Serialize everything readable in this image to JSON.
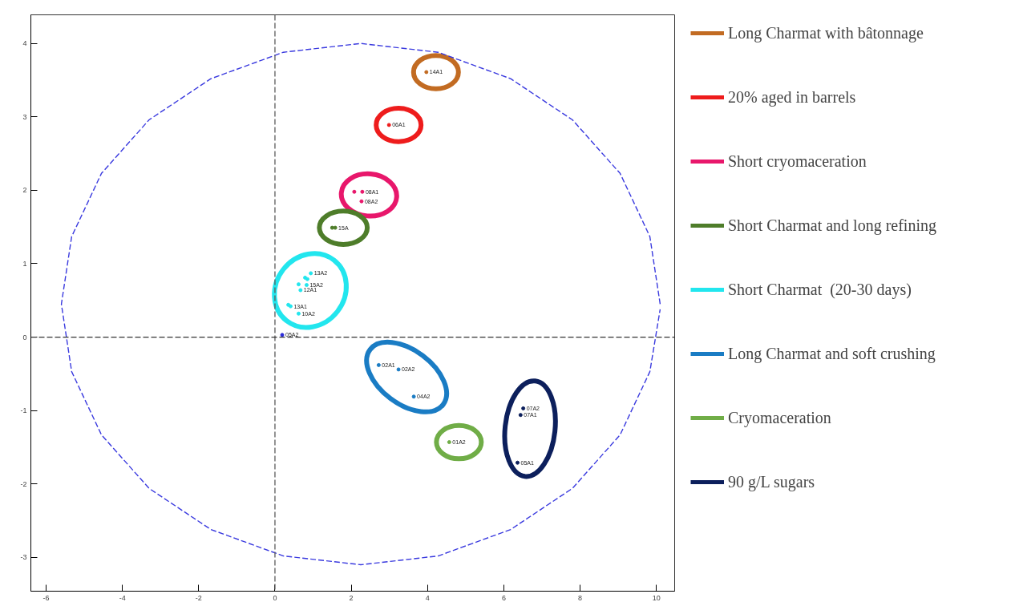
{
  "chart_data": {
    "type": "scatter",
    "xlim": [
      -6.4,
      10.48
    ],
    "ylim": [
      -3.46,
      4.39
    ],
    "xticks": [
      -6,
      -4,
      -2,
      0,
      2,
      4,
      6,
      8,
      10
    ],
    "yticks": [
      -3,
      -2,
      -1,
      0,
      1,
      2,
      3,
      4
    ],
    "grid": false,
    "legend": "right",
    "marker": "circle",
    "series": [
      {
        "name": "Long Charmat with bâtonnage",
        "color": "#c26b22",
        "x": [
          3.97
        ],
        "values": [
          3.61
        ]
      },
      {
        "name": "20% aged in barrels",
        "color": "#ee1c1c",
        "x": [
          2.99
        ],
        "values": [
          2.89
        ]
      },
      {
        "name": "Short cryomaceration",
        "color": "#e8176b",
        "x": [
          2.08,
          2.29,
          2.27
        ],
        "values": [
          1.98,
          1.98,
          1.85
        ]
      },
      {
        "name": "Short Charmat and long refining",
        "color": "#4e7d2a",
        "x": [
          1.5,
          1.58
        ],
        "values": [
          1.49,
          1.49
        ]
      },
      {
        "name": "Short Charmat  (20-30 days)",
        "color": "#22e6ee",
        "x": [
          0.94,
          0.79,
          0.85,
          0.62,
          0.67,
          0.83,
          0.35,
          0.41,
          0.62
        ],
        "values": [
          0.87,
          0.81,
          0.79,
          0.72,
          0.64,
          0.71,
          0.44,
          0.42,
          0.32
        ]
      },
      {
        "name": "Long Charmat and soft crushing",
        "color": "#1a7cc4",
        "x": [
          2.72,
          3.24,
          3.64
        ],
        "values": [
          -0.38,
          -0.44,
          -0.81
        ]
      },
      {
        "name": "Cryomaceration",
        "color": "#70ad47",
        "x": [
          4.57
        ],
        "values": [
          -1.43
        ]
      },
      {
        "name": "90 g/L sugars",
        "color": "#0c1f5c",
        "x": [
          6.51,
          6.44,
          6.36
        ],
        "values": [
          -0.97,
          -1.06,
          -1.71
        ]
      },
      {
        "color": "#2b2bd9",
        "x": [
          0.19
        ],
        "values": [
          0.03
        ]
      },
      {
        "type": "line",
        "marker": "none",
        "line_style": "dashed",
        "color": "#3a3adf",
        "x": [
          10.1,
          9.83,
          9.05,
          7.8,
          6.18,
          4.28,
          2.25,
          0.22,
          -1.68,
          -3.3,
          -4.55,
          -5.33,
          -5.6,
          -5.33,
          -4.55,
          -3.3,
          -1.68,
          0.22,
          2.25,
          4.28,
          6.18,
          7.8,
          9.05,
          9.83,
          10.1
        ],
        "values": [
          0.45,
          1.37,
          2.23,
          2.96,
          3.52,
          3.88,
          4.0,
          3.88,
          3.52,
          2.96,
          2.23,
          1.37,
          0.45,
          -0.47,
          -1.33,
          -2.06,
          -2.62,
          -2.98,
          -3.1,
          -2.98,
          -2.62,
          -2.06,
          -1.33,
          -0.47,
          0.38
        ]
      }
    ],
    "ref_lines": [
      {
        "axis": "x",
        "value": 0,
        "line_style": "dashed",
        "color": "#5a5a5a"
      },
      {
        "axis": "y",
        "value": 0,
        "line_style": "dashed",
        "color": "#333333"
      }
    ],
    "annotations": [
      {
        "text": "14A1",
        "x": 3.97,
        "y": 3.61
      },
      {
        "text": "06A1",
        "x": 2.99,
        "y": 2.89
      },
      {
        "text": "08A1",
        "x": 2.29,
        "y": 1.98
      },
      {
        "text": "08A2",
        "x": 2.27,
        "y": 1.85
      },
      {
        "text": "15A",
        "x": 1.58,
        "y": 1.49
      },
      {
        "text": "13A2",
        "x": 0.94,
        "y": 0.87
      },
      {
        "text": "12A1",
        "x": 0.67,
        "y": 0.64
      },
      {
        "text": "15A2",
        "x": 0.83,
        "y": 0.71
      },
      {
        "text": "13A1",
        "x": 0.41,
        "y": 0.42
      },
      {
        "text": "10A2",
        "x": 0.62,
        "y": 0.32
      },
      {
        "text": "05A2",
        "x": 0.19,
        "y": 0.03
      },
      {
        "text": "02A1",
        "x": 2.72,
        "y": -0.38
      },
      {
        "text": "02A2",
        "x": 3.24,
        "y": -0.44
      },
      {
        "text": "04A2",
        "x": 3.64,
        "y": -0.81
      },
      {
        "text": "01A2",
        "x": 4.57,
        "y": -1.43
      },
      {
        "text": "07A2",
        "x": 6.51,
        "y": -0.97
      },
      {
        "text": "07A1",
        "x": 6.44,
        "y": -1.06
      },
      {
        "text": "05A1",
        "x": 6.36,
        "y": -1.71
      }
    ]
  }
}
